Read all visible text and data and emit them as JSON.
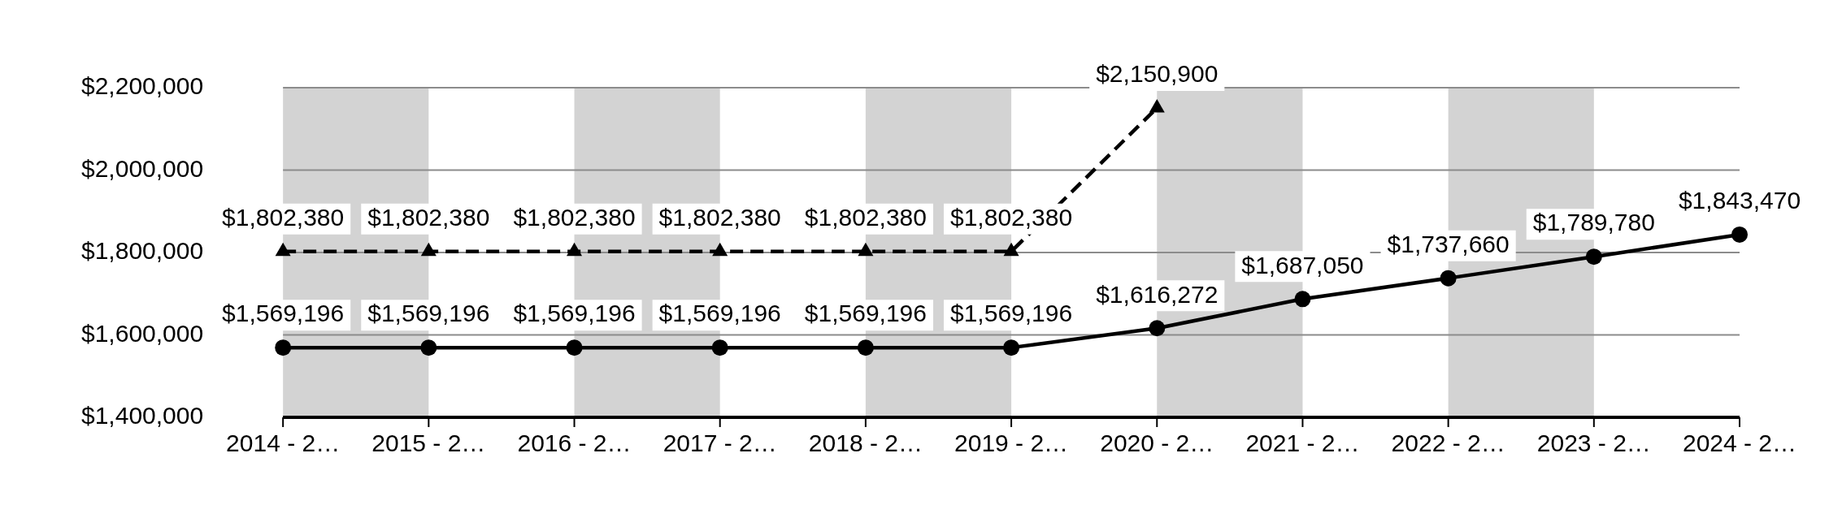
{
  "chart_data": {
    "type": "line",
    "categories": [
      "2014 - 2…",
      "2015 - 2…",
      "2016 - 2…",
      "2017 - 2…",
      "2018 - 2…",
      "2019 - 2…",
      "2020 - 2…",
      "2021 - 2…",
      "2022 - 2…",
      "2023 - 2…",
      "2024 - 2…"
    ],
    "series": [
      {
        "color": "#000000",
        "marker": "triangle",
        "line_style": "dashed",
        "values": [
          1802380,
          1802380,
          1802380,
          1802380,
          1802380,
          1802380,
          2150900,
          null,
          null,
          null,
          null
        ],
        "value_labels": [
          "$1,802,380",
          "$1,802,380",
          "$1,802,380",
          "$1,802,380",
          "$1,802,380",
          "$1,802,380",
          "$2,150,900",
          null,
          null,
          null,
          null
        ]
      },
      {
        "color": "#000000",
        "marker": "circle",
        "line_style": "solid",
        "values": [
          1569196,
          1569196,
          1569196,
          1569196,
          1569196,
          1569196,
          1616272,
          1687050,
          1737660,
          1789780,
          1843470
        ],
        "value_labels": [
          "$1,569,196",
          "$1,569,196",
          "$1,569,196",
          "$1,569,196",
          "$1,569,196",
          "$1,569,196",
          "$1,616,272",
          "$1,687,050",
          "$1,737,660",
          "$1,789,780",
          "$1,843,470"
        ]
      }
    ],
    "ylim": [
      1400000,
      2200000
    ],
    "yticks": [
      {
        "value": 1400000,
        "label": "$1,400,000"
      },
      {
        "value": 1600000,
        "label": "$1,600,000"
      },
      {
        "value": 1800000,
        "label": "$1,800,000"
      },
      {
        "value": 2000000,
        "label": "$2,000,000"
      },
      {
        "value": 2200000,
        "label": "$2,200,000"
      }
    ],
    "bands": [
      {
        "axis": "x",
        "from": "2014 - 2…",
        "to": "2015 - 2…",
        "color": "#d3d3d3"
      },
      {
        "axis": "x",
        "from": "2016 - 2…",
        "to": "2017 - 2…",
        "color": "#d3d3d3"
      },
      {
        "axis": "x",
        "from": "2018 - 2…",
        "to": "2019 - 2…",
        "color": "#d3d3d3"
      },
      {
        "axis": "x",
        "from": "2020 - 2…",
        "to": "2021 - 2…",
        "color": "#d3d3d3"
      },
      {
        "axis": "x",
        "from": "2022 - 2…",
        "to": "2023 - 2…",
        "color": "#d3d3d3"
      }
    ],
    "grid": "y",
    "legend": false
  }
}
